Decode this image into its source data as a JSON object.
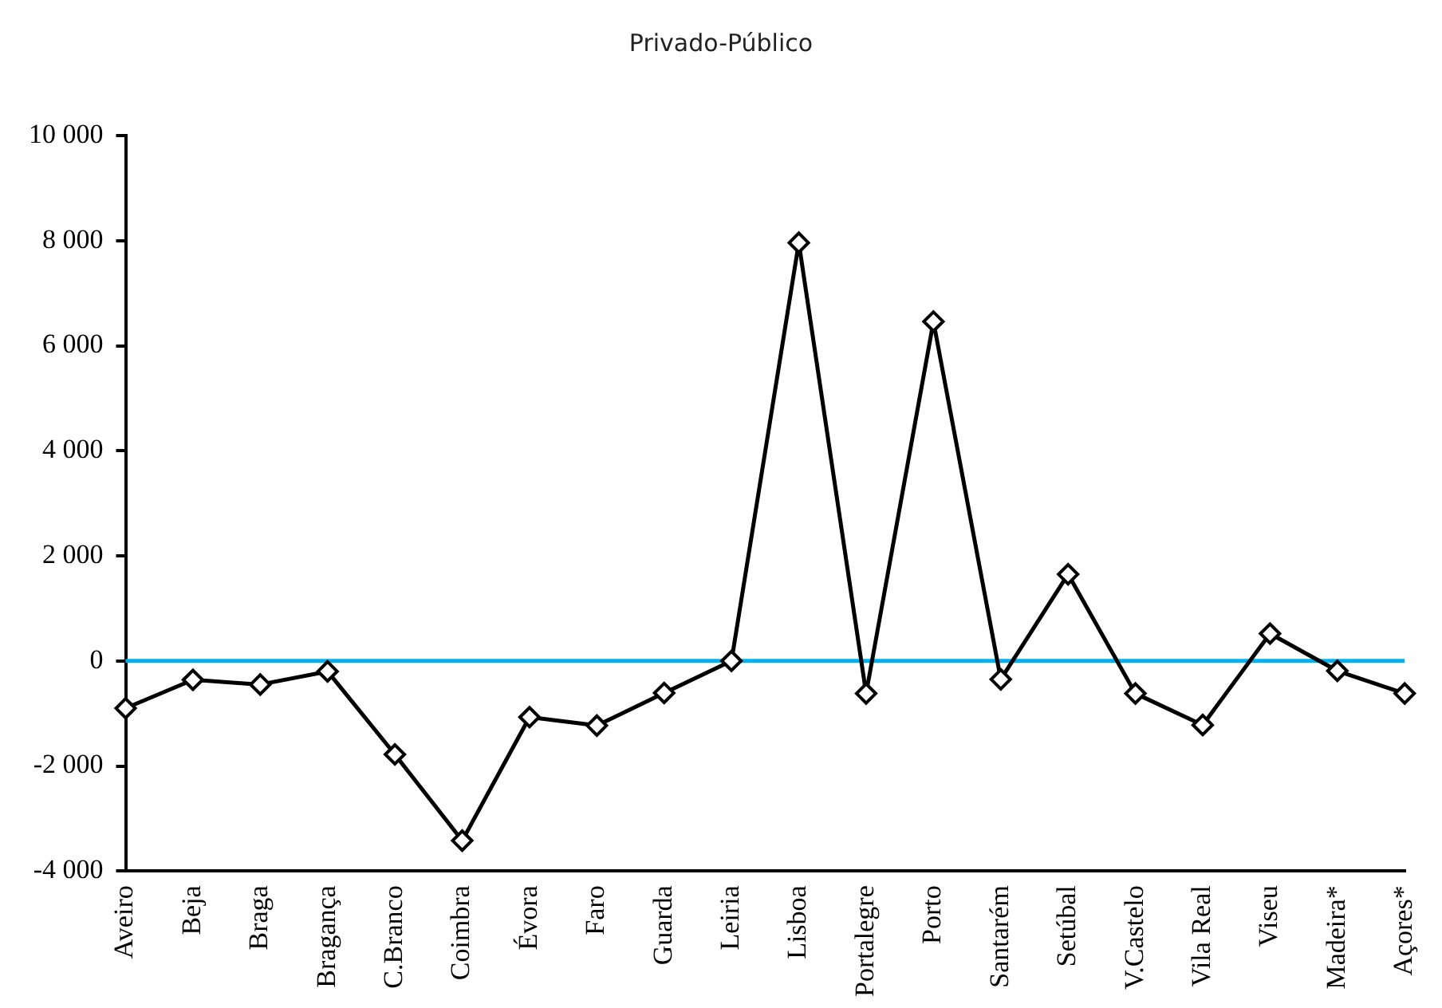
{
  "chart_data": {
    "type": "line",
    "title": "Privado-Público",
    "categories": [
      "Aveiro",
      "Beja",
      "Braga",
      "Bragança",
      "C.Branco",
      "Coimbra",
      "Évora",
      "Faro",
      "Guarda",
      "Leiria",
      "Lisboa",
      "Portalegre",
      "Porto",
      "Santarém",
      "Setúbal",
      "V.Castelo",
      "Vila Real",
      "Viseu",
      "Madeira*",
      "Açores*"
    ],
    "series": [
      {
        "color": "#000000",
        "values": [
          -900,
          -360,
          -450,
          -200,
          -1780,
          -3420,
          -1070,
          -1230,
          -610,
          0,
          7960,
          -620,
          6460,
          -350,
          1650,
          -620,
          -1220,
          520,
          -190,
          -620
        ]
      }
    ],
    "ylim": [
      -4000,
      10000
    ],
    "yticks": [
      {
        "value": -4000,
        "label": "-4 000"
      },
      {
        "value": -2000,
        "label": "-2 000"
      },
      0,
      {
        "value": 2000,
        "label": "2 000"
      },
      {
        "value": 4000,
        "label": "4 000"
      },
      {
        "value": 6000,
        "label": "6 000"
      },
      {
        "value": 8000,
        "label": "8 000"
      },
      {
        "value": 10000,
        "label": "10 000"
      }
    ],
    "ref_lines": [
      {
        "axis": "y",
        "value": 0,
        "color": "#00b0f0"
      }
    ],
    "grid": false,
    "legend": false,
    "marker": "diamond",
    "line_style": "solid"
  }
}
